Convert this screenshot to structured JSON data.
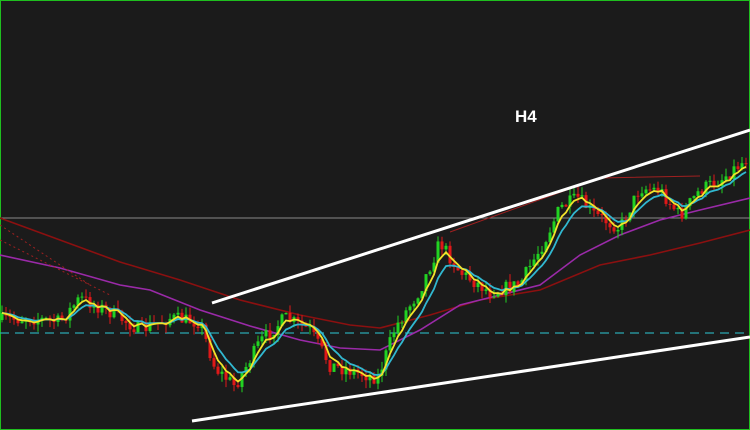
{
  "chart_label": "H4"
}
